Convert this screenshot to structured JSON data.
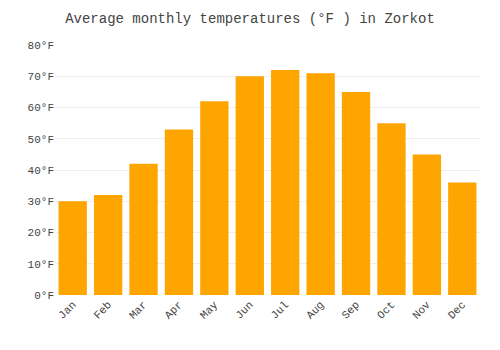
{
  "chart_data": {
    "type": "bar",
    "title": "Average monthly temperatures (°F ) in Zorkot",
    "categories": [
      "Jan",
      "Feb",
      "Mar",
      "Apr",
      "May",
      "Jun",
      "Jul",
      "Aug",
      "Sep",
      "Oct",
      "Nov",
      "Dec"
    ],
    "values": [
      30,
      32,
      42,
      53,
      62,
      70,
      72,
      71,
      65,
      55,
      45,
      36
    ],
    "color": "#FFA500",
    "ylim": [
      0,
      80
    ],
    "yticks": [
      {
        "value": 0,
        "label": "0°F"
      },
      {
        "value": 10,
        "label": "10°F"
      },
      {
        "value": 20,
        "label": "20°F"
      },
      {
        "value": 30,
        "label": "30°F"
      },
      {
        "value": 40,
        "label": "40°F"
      },
      {
        "value": 50,
        "label": "50°F"
      },
      {
        "value": 60,
        "label": "60°F"
      },
      {
        "value": 70,
        "label": "70°F"
      },
      {
        "value": 80,
        "label": "80°F"
      }
    ],
    "grid": true
  }
}
